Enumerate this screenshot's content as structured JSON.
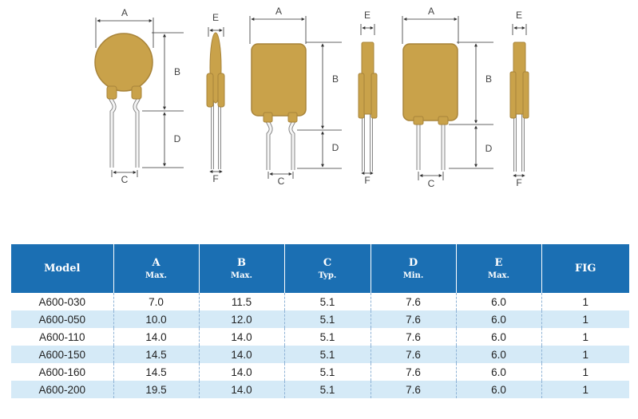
{
  "colors": {
    "body": "#c9a24a",
    "body_dark": "#9c7a2e",
    "header_bg": "#1b6fb3",
    "stripe": "#d5eaf7"
  },
  "figures": {
    "labels": {
      "A": "A",
      "B": "B",
      "C": "C",
      "D": "D",
      "E": "E",
      "F": "F"
    }
  },
  "table": {
    "headers": [
      {
        "main": "Model",
        "sub": ""
      },
      {
        "main": "A",
        "sub": "Max."
      },
      {
        "main": "B",
        "sub": "Max."
      },
      {
        "main": "C",
        "sub": "Typ."
      },
      {
        "main": "D",
        "sub": "Min."
      },
      {
        "main": "E",
        "sub": "Max."
      },
      {
        "main": "FIG",
        "sub": ""
      }
    ],
    "rows": [
      [
        "A600-030",
        "7.0",
        "11.5",
        "5.1",
        "7.6",
        "6.0",
        "1"
      ],
      [
        "A600-050",
        "10.0",
        "12.0",
        "5.1",
        "7.6",
        "6.0",
        "1"
      ],
      [
        "A600-110",
        "14.0",
        "14.0",
        "5.1",
        "7.6",
        "6.0",
        "1"
      ],
      [
        "A600-150",
        "14.5",
        "14.0",
        "5.1",
        "7.6",
        "6.0",
        "1"
      ],
      [
        "A600-160",
        "14.5",
        "14.0",
        "5.1",
        "7.6",
        "6.0",
        "1"
      ],
      [
        "A600-200",
        "19.5",
        "14.0",
        "5.1",
        "7.6",
        "6.0",
        "1"
      ]
    ]
  }
}
